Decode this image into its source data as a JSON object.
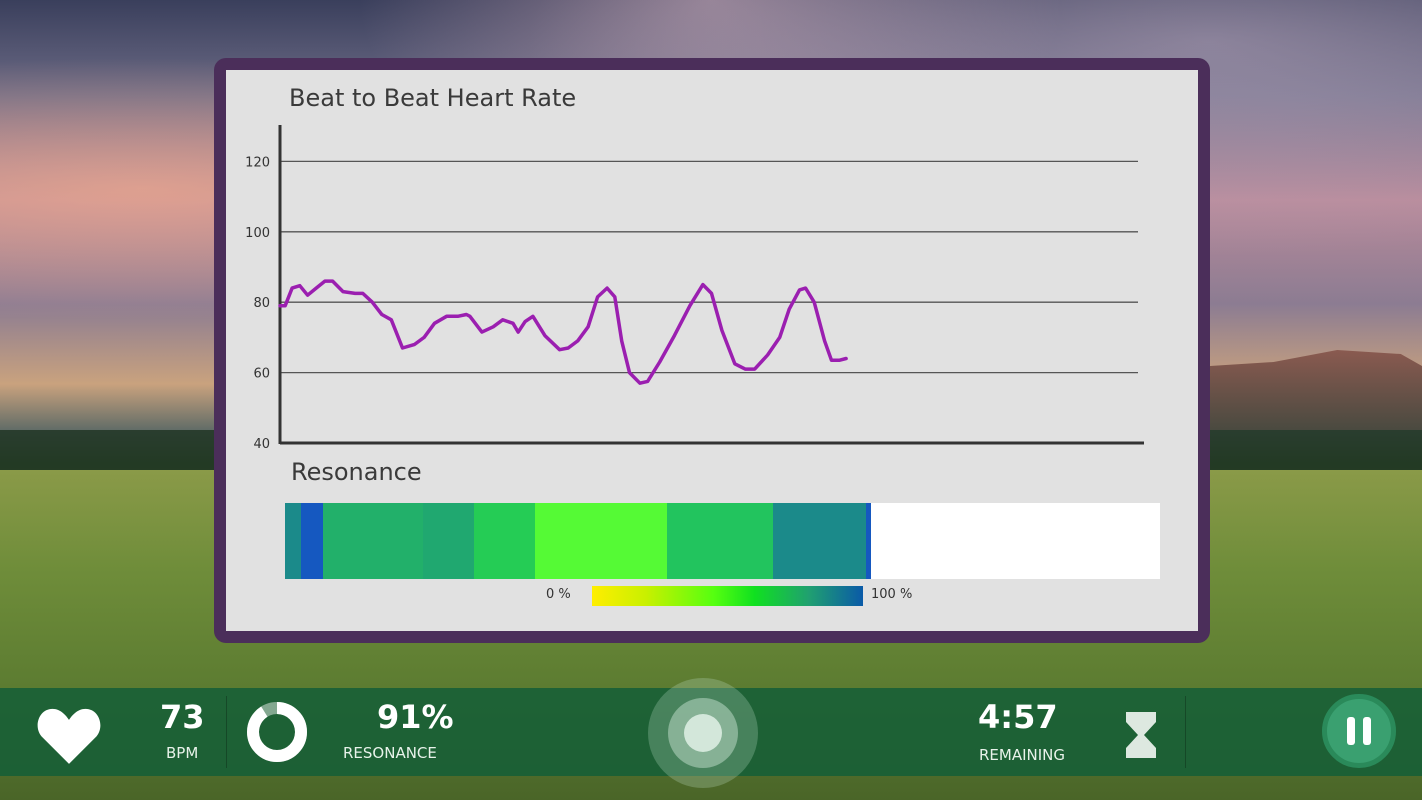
{
  "panel": {
    "chart_title": "Beat to Beat Heart Rate",
    "resonance_title": "Resonance",
    "legend_min": "0 %",
    "legend_max": "100 %"
  },
  "chart_data": {
    "type": "line",
    "title": "Beat to Beat Heart Rate",
    "xlabel": "",
    "ylabel": "",
    "ylim": [
      40,
      130
    ],
    "yticks": [
      40,
      60,
      80,
      100,
      120
    ],
    "xlim": [
      0,
      100
    ],
    "grid": true,
    "series": [
      {
        "name": "heart rate",
        "color": "#9b1fb0",
        "x": [
          0,
          0.6,
          1.4,
          2.3,
          3.2,
          4.2,
          5.2,
          6.1,
          7.3,
          8.7,
          9.6,
          10.7,
          11.8,
          12.9,
          14.2,
          15.6,
          16.7,
          17.9,
          19.3,
          20.6,
          21.6,
          22,
          23.4,
          24.7,
          25.8,
          27,
          27.6,
          28.4,
          29.3,
          30.7,
          32.4,
          33.4,
          34.5,
          35.7,
          36.8,
          37.9,
          38.8,
          39.6,
          40.5,
          41.7,
          42.6,
          44,
          45.7,
          47.5,
          49,
          50,
          51.2,
          52.7,
          53.9,
          55,
          56.5,
          57.9,
          59,
          60.2,
          60.9,
          61.9,
          63.1,
          63.9,
          64.8,
          65.6
        ],
        "y": [
          79,
          79,
          84,
          84.7,
          82,
          84,
          86,
          86,
          83,
          82.5,
          82.5,
          80,
          76.5,
          75,
          67,
          68,
          70,
          74,
          76,
          76,
          76.5,
          76,
          71.5,
          73,
          75,
          74,
          71.5,
          74.5,
          76,
          70.5,
          66.5,
          67,
          69,
          73,
          81.5,
          84,
          81.5,
          69,
          60,
          57,
          57.5,
          63,
          70.5,
          79,
          85,
          82.5,
          72,
          62.5,
          61,
          61,
          65,
          70,
          78,
          83.5,
          84,
          80,
          69,
          63.5,
          63.5,
          64
        ]
      }
    ]
  },
  "resonance": {
    "segments": [
      {
        "fraction": 0.018,
        "color": "#1b8a8a"
      },
      {
        "fraction": 0.025,
        "color": "#1558c0"
      },
      {
        "fraction": 0.115,
        "color": "#22b06a"
      },
      {
        "fraction": 0.058,
        "color": "#20a870"
      },
      {
        "fraction": 0.07,
        "color": "#25cc55"
      },
      {
        "fraction": 0.15,
        "color": "#55fa35"
      },
      {
        "fraction": 0.122,
        "color": "#22c45e"
      },
      {
        "fraction": 0.106,
        "color": "#1b8a8a"
      },
      {
        "fraction": 0.006,
        "color": "#1558c0"
      }
    ]
  },
  "stats": {
    "bpm_value": "73",
    "bpm_label": "BPM",
    "resonance_value": "91%",
    "resonance_label": "RESONANCE",
    "resonance_fraction": 0.91,
    "time_value": "4:57",
    "time_label": "REMAINING"
  }
}
